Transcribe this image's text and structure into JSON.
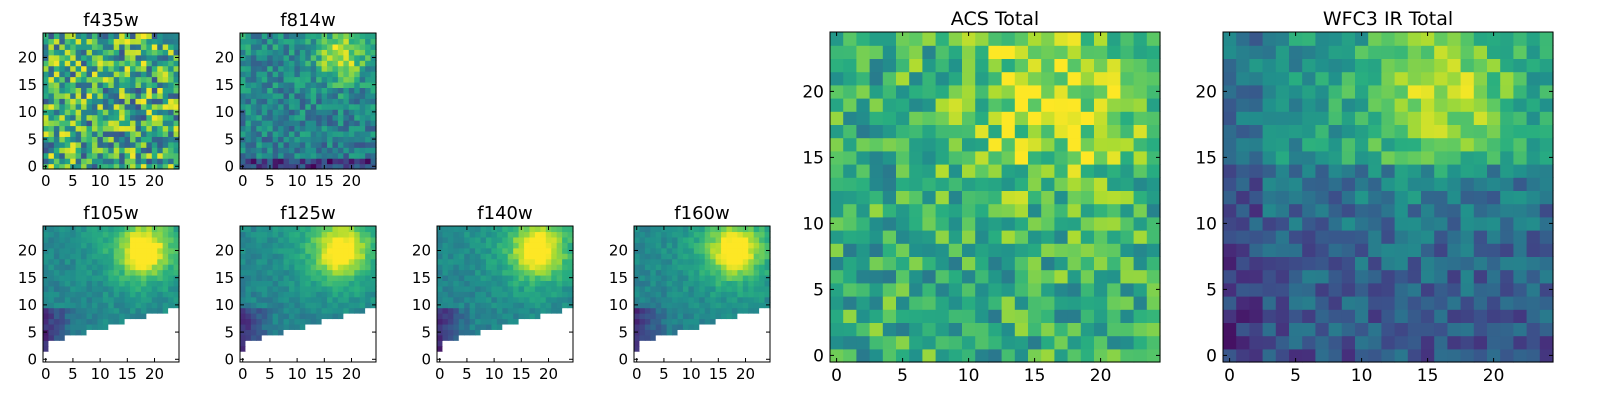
{
  "chart_data": [
    {
      "type": "heatmap",
      "title": "f435w",
      "xlim": [
        0,
        25
      ],
      "ylim": [
        0,
        25
      ],
      "xticks": [
        0,
        5,
        10,
        15,
        20
      ],
      "yticks": [
        0,
        5,
        10,
        15,
        20
      ],
      "pattern": "noise",
      "masked": false
    },
    {
      "type": "heatmap",
      "title": "f814w",
      "xlim": [
        0,
        25
      ],
      "ylim": [
        0,
        25
      ],
      "xticks": [
        0,
        5,
        10,
        15,
        20
      ],
      "yticks": [
        0,
        5,
        10,
        15,
        20
      ],
      "pattern": "source-low-noise",
      "masked": false
    },
    {
      "type": "heatmap",
      "title": "f105w",
      "xlim": [
        0,
        25
      ],
      "ylim": [
        0,
        25
      ],
      "xticks": [
        0,
        5,
        10,
        15,
        20
      ],
      "yticks": [
        0,
        5,
        10,
        15,
        20
      ],
      "pattern": "source-smooth",
      "masked": true
    },
    {
      "type": "heatmap",
      "title": "f125w",
      "xlim": [
        0,
        25
      ],
      "ylim": [
        0,
        25
      ],
      "xticks": [
        0,
        5,
        10,
        15,
        20
      ],
      "yticks": [
        0,
        5,
        10,
        15,
        20
      ],
      "pattern": "source-smooth",
      "masked": true
    },
    {
      "type": "heatmap",
      "title": "f140w",
      "xlim": [
        0,
        25
      ],
      "ylim": [
        0,
        25
      ],
      "xticks": [
        0,
        5,
        10,
        15,
        20
      ],
      "yticks": [
        0,
        5,
        10,
        15,
        20
      ],
      "pattern": "source-smooth",
      "masked": true
    },
    {
      "type": "heatmap",
      "title": "f160w",
      "xlim": [
        0,
        25
      ],
      "ylim": [
        0,
        25
      ],
      "xticks": [
        0,
        5,
        10,
        15,
        20
      ],
      "yticks": [
        0,
        5,
        10,
        15,
        20
      ],
      "pattern": "source-smooth",
      "masked": true
    },
    {
      "type": "heatmap",
      "title": "ACS Total",
      "xlim": [
        0,
        25
      ],
      "ylim": [
        0,
        25
      ],
      "xticks": [
        0,
        5,
        10,
        15,
        20
      ],
      "yticks": [
        0,
        5,
        10,
        15,
        20
      ],
      "pattern": "acs-total",
      "masked": false
    },
    {
      "type": "heatmap",
      "title": "WFC3 IR Total",
      "xlim": [
        0,
        25
      ],
      "ylim": [
        0,
        25
      ],
      "xticks": [
        0,
        5,
        10,
        15,
        20
      ],
      "yticks": [
        0,
        5,
        10,
        15,
        20
      ],
      "pattern": "ir-total",
      "masked": false
    }
  ],
  "colormap": [
    "#440154",
    "#472d7b",
    "#3b528b",
    "#2c728e",
    "#21918c",
    "#28ae80",
    "#5ec962",
    "#addc30",
    "#fde725"
  ],
  "mask_color": "#ffffff"
}
